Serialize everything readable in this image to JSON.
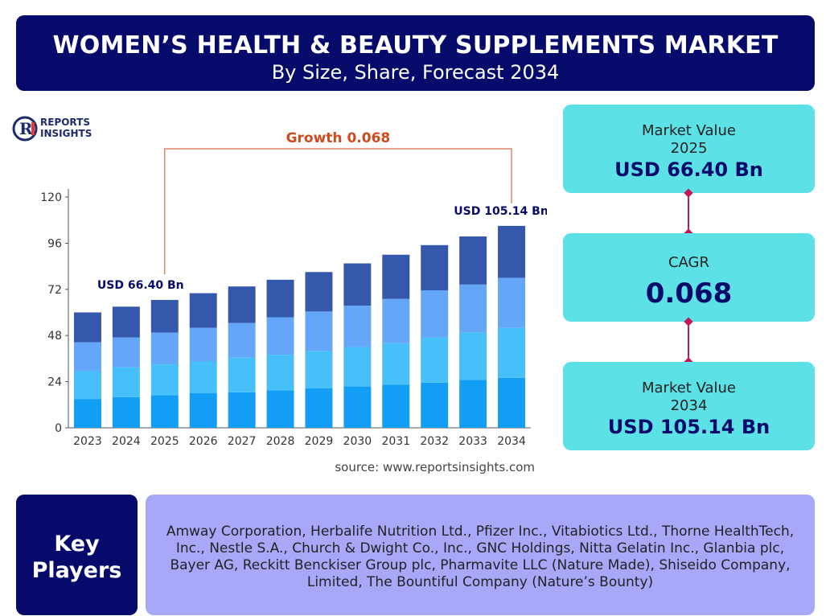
{
  "header": {
    "title": "WOMEN’S HEALTH & BEAUTY SUPPLEMENTS MARKET",
    "subtitle": "By Size, Share, Forecast 2034"
  },
  "logo": {
    "line1": "REPORTS",
    "line2": "INSIGHTS"
  },
  "chart_data": {
    "type": "bar",
    "stacked": true,
    "categories": [
      "2023",
      "2024",
      "2025",
      "2026",
      "2027",
      "2028",
      "2029",
      "2030",
      "2031",
      "2032",
      "2033",
      "2034"
    ],
    "series": [
      {
        "values": [
          15,
          16,
          17,
          18,
          18.5,
          19.5,
          20.5,
          21.5,
          22.5,
          23.5,
          25,
          26
        ]
      },
      {
        "values": [
          14.5,
          15.5,
          16,
          16.5,
          18,
          18.5,
          19.5,
          20.5,
          21.5,
          23.5,
          24.5,
          26
        ]
      },
      {
        "values": [
          15,
          15.5,
          16.5,
          17.5,
          18,
          19.5,
          20.5,
          21.5,
          23,
          24.5,
          25,
          26
        ]
      },
      {
        "values": [
          15.5,
          16,
          17,
          18,
          19,
          19.5,
          20.5,
          22,
          23,
          23.5,
          25,
          27
        ]
      }
    ],
    "series_colors": [
      "#139ef5",
      "#47c0f9",
      "#64a6f7",
      "#3558ad"
    ],
    "ylim": [
      0,
      120
    ],
    "yticks": [
      0,
      24,
      48,
      72,
      96,
      120
    ],
    "annotations": {
      "start_label": "USD 66.40 Bn",
      "end_label": "USD 105.14 Bn",
      "growth_label": "Growth 0.068"
    },
    "grid": false,
    "legend": "none"
  },
  "source": "source: www.reportsinsights.com",
  "cards": {
    "value_2025": {
      "label": "Market Value",
      "year": "2025",
      "value": "USD 66.40 Bn"
    },
    "cagr": {
      "label": "CAGR",
      "value": "0.068"
    },
    "value_2034": {
      "label": "Market Value",
      "year": "2034",
      "value": "USD 105.14 Bn"
    }
  },
  "key_players": {
    "title_line1": "Key",
    "title_line2": "Players",
    "text": "Amway Corporation, Herbalife Nutrition Ltd., Pfizer Inc., Vitabiotics Ltd., Thorne HealthTech, Inc., Nestle S.A., Church & Dwight Co., Inc., GNC Holdings, Nitta Gelatin Inc., Glanbia plc, Bayer AG, Reckitt Benckiser Group plc, Pharmavite LLC (Nature Made), Shiseido Company, Limited, The Bountiful Company (Nature’s Bounty)"
  },
  "colors": {
    "banner": "#060a6b",
    "card": "#5ce1e6",
    "players_box": "#a9a8f8",
    "growth": "#d14a1d",
    "connector": "#c2185b"
  }
}
